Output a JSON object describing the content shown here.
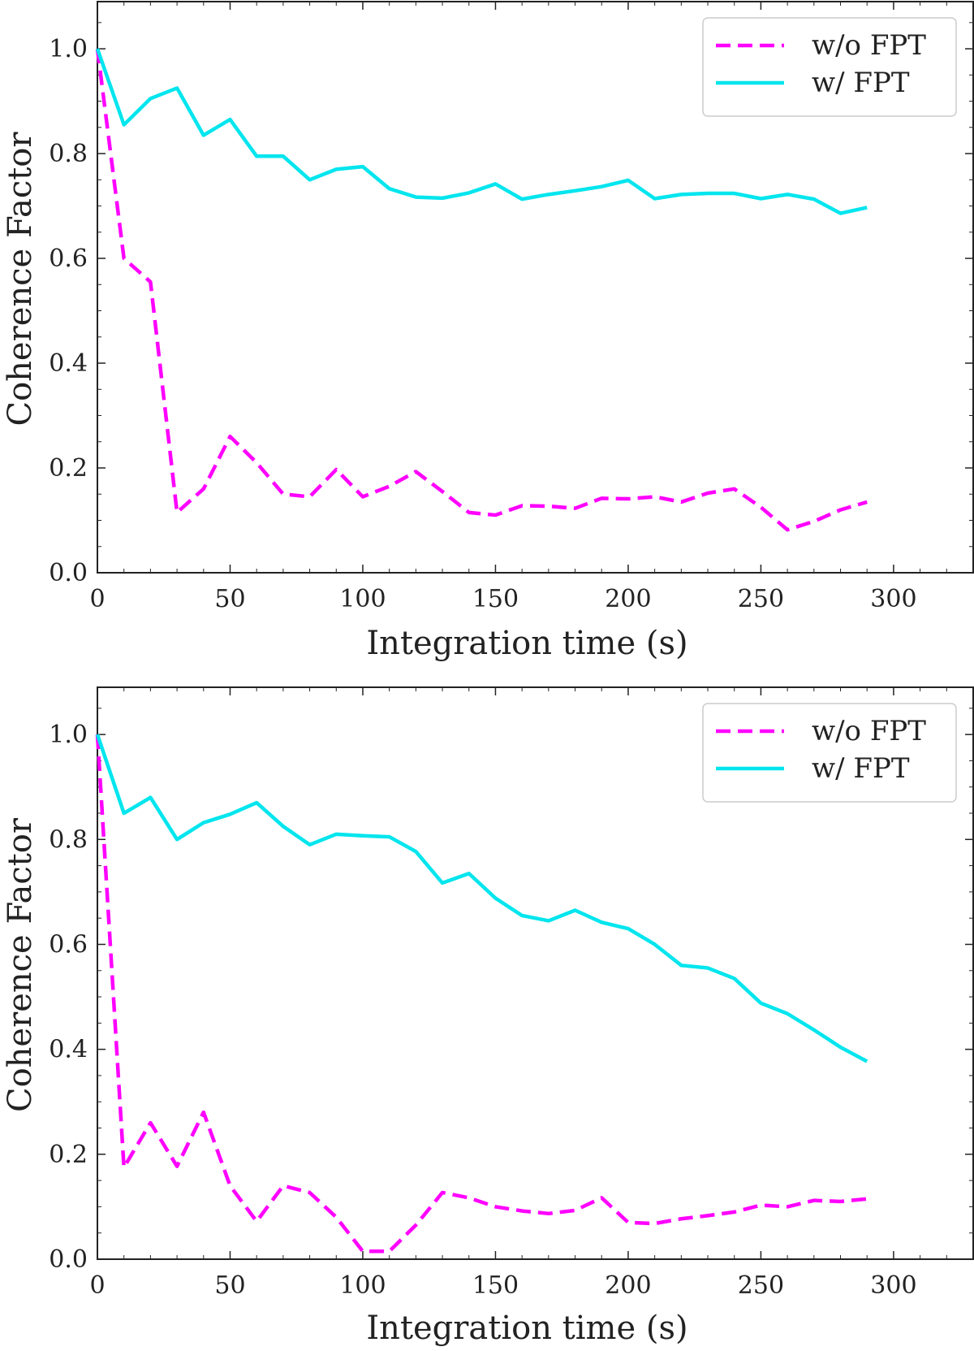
{
  "chart_data": [
    {
      "type": "line",
      "xlabel": "Integration time (s)",
      "ylabel": "Coherence Factor",
      "xlim": [
        0,
        330
      ],
      "ylim": [
        0.0,
        1.09
      ],
      "xticks": [
        0,
        50,
        100,
        150,
        200,
        250,
        300
      ],
      "yticks": [
        0.0,
        0.2,
        0.4,
        0.6,
        0.8,
        1.0
      ],
      "xtick_labels": [
        "0",
        "50",
        "100",
        "150",
        "200",
        "250",
        "300"
      ],
      "ytick_labels": [
        "0.0",
        "0.2",
        "0.4",
        "0.6",
        "0.8",
        "1.0"
      ],
      "legend_position": "top-right",
      "x": [
        0,
        10,
        20,
        30,
        40,
        50,
        60,
        70,
        80,
        90,
        100,
        110,
        120,
        130,
        140,
        150,
        160,
        170,
        180,
        190,
        200,
        210,
        220,
        230,
        240,
        250,
        260,
        270,
        280,
        290
      ],
      "series": [
        {
          "name": "w/o FPT",
          "color": "#ff00ff",
          "style": "dashed",
          "values": [
            1.0,
            0.6,
            0.555,
            0.115,
            0.16,
            0.26,
            0.21,
            0.15,
            0.145,
            0.197,
            0.145,
            0.165,
            0.193,
            0.155,
            0.115,
            0.11,
            0.128,
            0.127,
            0.123,
            0.142,
            0.141,
            0.145,
            0.135,
            0.152,
            0.16,
            0.125,
            0.082,
            0.098,
            0.12,
            0.135
          ]
        },
        {
          "name": "w/ FPT",
          "color": "#00e5ee",
          "style": "solid",
          "values": [
            1.0,
            0.855,
            0.905,
            0.925,
            0.835,
            0.865,
            0.795,
            0.795,
            0.75,
            0.77,
            0.775,
            0.733,
            0.717,
            0.715,
            0.725,
            0.742,
            0.713,
            0.722,
            0.729,
            0.737,
            0.749,
            0.714,
            0.722,
            0.724,
            0.724,
            0.714,
            0.722,
            0.713,
            0.686,
            0.697
          ]
        }
      ]
    },
    {
      "type": "line",
      "xlabel": "Integration time (s)",
      "ylabel": "Coherence Factor",
      "xlim": [
        0,
        330
      ],
      "ylim": [
        0.0,
        1.09
      ],
      "xticks": [
        0,
        50,
        100,
        150,
        200,
        250,
        300
      ],
      "yticks": [
        0.0,
        0.2,
        0.4,
        0.6,
        0.8,
        1.0
      ],
      "xtick_labels": [
        "0",
        "50",
        "100",
        "150",
        "200",
        "250",
        "300"
      ],
      "ytick_labels": [
        "0.0",
        "0.2",
        "0.4",
        "0.6",
        "0.8",
        "1.0"
      ],
      "legend_position": "top-right",
      "x": [
        0,
        10,
        20,
        30,
        40,
        50,
        60,
        70,
        80,
        90,
        100,
        110,
        120,
        130,
        140,
        150,
        160,
        170,
        180,
        190,
        200,
        210,
        220,
        230,
        240,
        250,
        260,
        270,
        280,
        290
      ],
      "series": [
        {
          "name": "w/o FPT",
          "color": "#ff00ff",
          "style": "dashed",
          "values": [
            1.0,
            0.175,
            0.26,
            0.177,
            0.28,
            0.14,
            0.072,
            0.14,
            0.127,
            0.08,
            0.015,
            0.015,
            0.065,
            0.127,
            0.117,
            0.1,
            0.092,
            0.087,
            0.093,
            0.117,
            0.07,
            0.068,
            0.077,
            0.083,
            0.09,
            0.103,
            0.1,
            0.112,
            0.11,
            0.115
          ]
        },
        {
          "name": "w/ FPT",
          "color": "#00e5ee",
          "style": "solid",
          "values": [
            1.0,
            0.85,
            0.88,
            0.8,
            0.832,
            0.848,
            0.87,
            0.825,
            0.79,
            0.81,
            0.807,
            0.805,
            0.777,
            0.717,
            0.735,
            0.688,
            0.655,
            0.645,
            0.665,
            0.642,
            0.63,
            0.6,
            0.56,
            0.555,
            0.535,
            0.488,
            0.468,
            0.437,
            0.404,
            0.377
          ]
        }
      ]
    }
  ]
}
